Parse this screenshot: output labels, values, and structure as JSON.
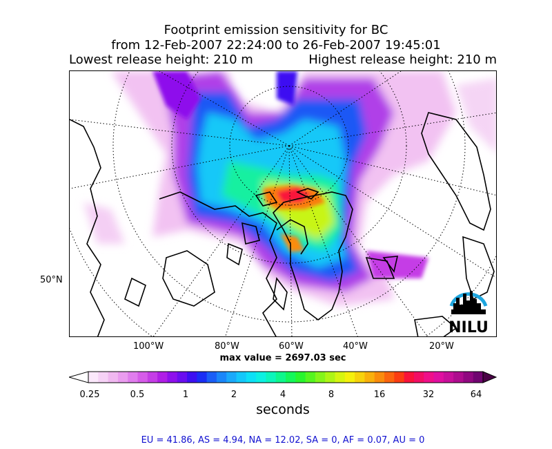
{
  "title": {
    "line1": "Footprint emission sensitivity for BC",
    "line2": "from 12-Feb-2007 22:24:00 to 26-Feb-2007 19:45:01",
    "lowest": "Lowest release height: 210 m",
    "highest": "Highest release height: 210 m"
  },
  "map": {
    "lat_label": "50°N",
    "lon_labels": [
      "100°W",
      "80°W",
      "60°W",
      "40°W",
      "20°W"
    ],
    "logo_text": "NILU",
    "logo_color": "#1ea6df",
    "max_value": "max value = 2697.03 sec"
  },
  "colorbar": {
    "tick_labels": [
      "0.25",
      "0.5",
      "1",
      "2",
      "4",
      "8",
      "16",
      "32",
      "64"
    ],
    "units": "seconds",
    "colors": [
      "#fbe8fb",
      "#f6d2f6",
      "#f0b8f0",
      "#ea9cef",
      "#e07ded",
      "#d65ce9",
      "#c53de6",
      "#b01ee6",
      "#8e10ec",
      "#6a0ef0",
      "#3d10f2",
      "#1a2ef5",
      "#1a5ef7",
      "#1a86f9",
      "#1aa9fa",
      "#14c7fa",
      "#0de0f6",
      "#0cf0e2",
      "#0cf5bb",
      "#0ef78c",
      "#14f75a",
      "#28f52e",
      "#55f51f",
      "#84f51a",
      "#aef515",
      "#d6f510",
      "#f5f00c",
      "#f7d20c",
      "#f9b00c",
      "#fa8c0c",
      "#fb650e",
      "#fb3d12",
      "#f9133a",
      "#f20e64",
      "#ef0f89",
      "#e00fa0",
      "#c80f9a",
      "#ae0c8e",
      "#900880",
      "#700570"
    ]
  },
  "stats": "EU = 41.86,  AS = 4.94,  NA = 12.02,  SA = 0,  AF = 0.07,  AU = 0"
}
